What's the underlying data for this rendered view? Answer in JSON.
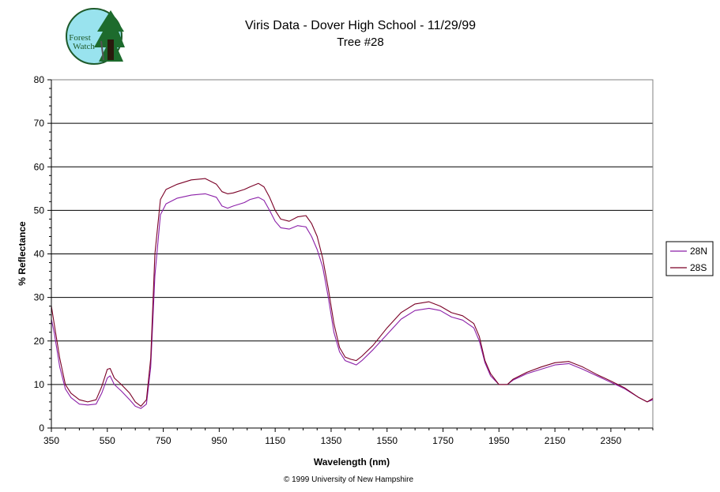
{
  "logo": {
    "line1": "Forest",
    "line2": "Watch"
  },
  "footer": "© 1999 University of New Hampshire",
  "colors": {
    "s28N": "#8b1fa8",
    "s28S": "#7a0026",
    "grid": "#000000"
  },
  "chart_data": {
    "type": "line",
    "title": "Viris Data - Dover High School - 11/29/99",
    "subtitle": "Tree #28",
    "xlabel": "Wavelength (nm)",
    "ylabel": "% Reflectance",
    "xlim": [
      350,
      2500
    ],
    "ylim": [
      0,
      80
    ],
    "xticks": [
      350,
      550,
      750,
      950,
      1150,
      1350,
      1550,
      1750,
      1950,
      2150,
      2350
    ],
    "yticks": [
      0,
      10,
      20,
      30,
      40,
      50,
      60,
      70,
      80
    ],
    "grid": "horizontal",
    "legend": "right",
    "series": [
      {
        "name": "28N",
        "color": "#8b1fa8",
        "points": [
          [
            350,
            25
          ],
          [
            360,
            22
          ],
          [
            380,
            14
          ],
          [
            400,
            9
          ],
          [
            420,
            7
          ],
          [
            450,
            5.5
          ],
          [
            480,
            5.3
          ],
          [
            510,
            5.5
          ],
          [
            530,
            8
          ],
          [
            550,
            11.5
          ],
          [
            560,
            12
          ],
          [
            575,
            10
          ],
          [
            600,
            8.5
          ],
          [
            630,
            6.5
          ],
          [
            650,
            5
          ],
          [
            670,
            4.5
          ],
          [
            690,
            5.5
          ],
          [
            705,
            14
          ],
          [
            720,
            35
          ],
          [
            740,
            49
          ],
          [
            760,
            51.5
          ],
          [
            800,
            52.8
          ],
          [
            850,
            53.5
          ],
          [
            900,
            53.8
          ],
          [
            940,
            53
          ],
          [
            960,
            51
          ],
          [
            980,
            50.5
          ],
          [
            1000,
            51
          ],
          [
            1040,
            51.8
          ],
          [
            1060,
            52.5
          ],
          [
            1090,
            53
          ],
          [
            1110,
            52.3
          ],
          [
            1130,
            50
          ],
          [
            1150,
            47.5
          ],
          [
            1170,
            46
          ],
          [
            1200,
            45.7
          ],
          [
            1230,
            46.5
          ],
          [
            1260,
            46.2
          ],
          [
            1280,
            44
          ],
          [
            1300,
            41
          ],
          [
            1320,
            37
          ],
          [
            1340,
            30
          ],
          [
            1360,
            22
          ],
          [
            1380,
            17.5
          ],
          [
            1400,
            15.5
          ],
          [
            1420,
            15
          ],
          [
            1440,
            14.5
          ],
          [
            1460,
            15.5
          ],
          [
            1500,
            18
          ],
          [
            1550,
            21.5
          ],
          [
            1600,
            25
          ],
          [
            1650,
            27
          ],
          [
            1700,
            27.5
          ],
          [
            1740,
            27
          ],
          [
            1780,
            25.5
          ],
          [
            1820,
            24.8
          ],
          [
            1860,
            23
          ],
          [
            1880,
            20
          ],
          [
            1900,
            15
          ],
          [
            1920,
            12
          ],
          [
            1950,
            10
          ],
          [
            1980,
            10
          ],
          [
            2000,
            11
          ],
          [
            2050,
            12.5
          ],
          [
            2100,
            13.5
          ],
          [
            2150,
            14.5
          ],
          [
            2200,
            14.8
          ],
          [
            2250,
            13.5
          ],
          [
            2300,
            12
          ],
          [
            2350,
            10.5
          ],
          [
            2400,
            9
          ],
          [
            2450,
            7
          ],
          [
            2480,
            6
          ],
          [
            2500,
            6.5
          ]
        ]
      },
      {
        "name": "28S",
        "color": "#7a0026",
        "points": [
          [
            350,
            28
          ],
          [
            360,
            24
          ],
          [
            380,
            16
          ],
          [
            400,
            10
          ],
          [
            420,
            8
          ],
          [
            450,
            6.5
          ],
          [
            480,
            6
          ],
          [
            510,
            6.5
          ],
          [
            530,
            9.5
          ],
          [
            550,
            13.5
          ],
          [
            560,
            13.7
          ],
          [
            575,
            11.5
          ],
          [
            600,
            10
          ],
          [
            630,
            8
          ],
          [
            650,
            6
          ],
          [
            670,
            5
          ],
          [
            690,
            6.5
          ],
          [
            705,
            16
          ],
          [
            720,
            40
          ],
          [
            740,
            52.5
          ],
          [
            760,
            54.8
          ],
          [
            800,
            56
          ],
          [
            850,
            57
          ],
          [
            900,
            57.3
          ],
          [
            940,
            56
          ],
          [
            960,
            54.3
          ],
          [
            980,
            53.8
          ],
          [
            1000,
            54
          ],
          [
            1040,
            54.8
          ],
          [
            1060,
            55.4
          ],
          [
            1090,
            56.2
          ],
          [
            1110,
            55.4
          ],
          [
            1130,
            53
          ],
          [
            1150,
            50
          ],
          [
            1170,
            48
          ],
          [
            1200,
            47.5
          ],
          [
            1230,
            48.5
          ],
          [
            1260,
            48.8
          ],
          [
            1280,
            47
          ],
          [
            1300,
            44
          ],
          [
            1320,
            39
          ],
          [
            1340,
            32
          ],
          [
            1360,
            24
          ],
          [
            1380,
            18.5
          ],
          [
            1400,
            16.3
          ],
          [
            1420,
            15.8
          ],
          [
            1440,
            15.5
          ],
          [
            1460,
            16.5
          ],
          [
            1500,
            19
          ],
          [
            1550,
            23
          ],
          [
            1600,
            26.5
          ],
          [
            1650,
            28.5
          ],
          [
            1700,
            29
          ],
          [
            1740,
            28
          ],
          [
            1780,
            26.5
          ],
          [
            1820,
            25.8
          ],
          [
            1860,
            24
          ],
          [
            1880,
            21
          ],
          [
            1900,
            15.5
          ],
          [
            1920,
            12.5
          ],
          [
            1950,
            10
          ],
          [
            1980,
            10
          ],
          [
            2000,
            11.2
          ],
          [
            2050,
            12.8
          ],
          [
            2100,
            14
          ],
          [
            2150,
            15
          ],
          [
            2200,
            15.3
          ],
          [
            2250,
            14
          ],
          [
            2300,
            12.3
          ],
          [
            2350,
            10.8
          ],
          [
            2400,
            9.2
          ],
          [
            2450,
            7
          ],
          [
            2480,
            6
          ],
          [
            2500,
            6.8
          ]
        ]
      }
    ]
  }
}
